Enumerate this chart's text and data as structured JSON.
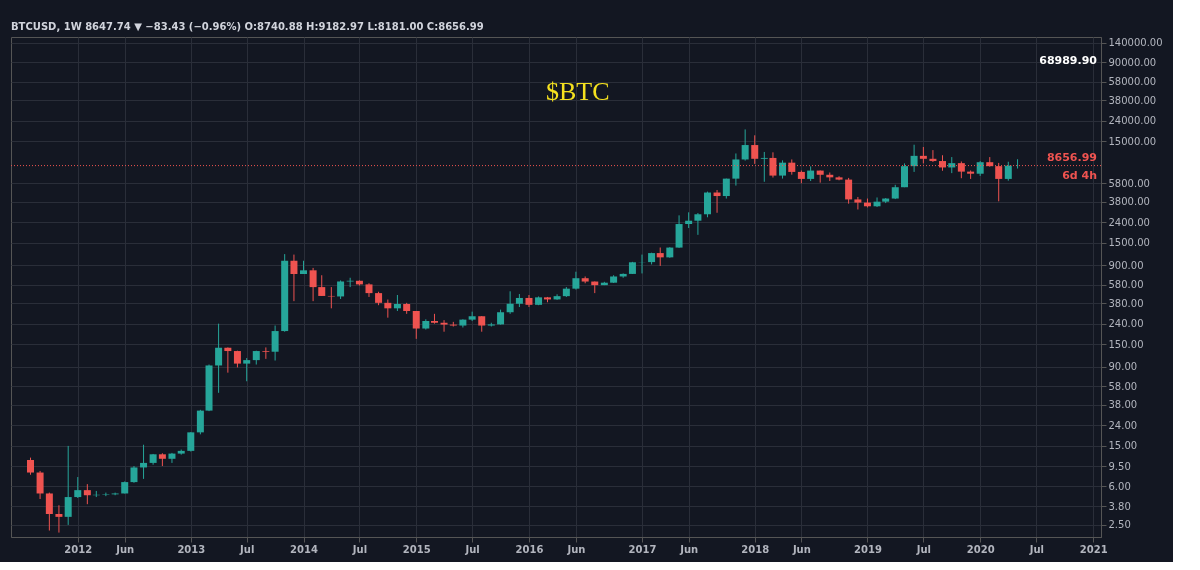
{
  "chart_data": {
    "type": "candlestick",
    "title": "$BTC",
    "annotations": [
      "BTCUSD, 1W 8647.74 ▼ −83.43 (−0.96%) O:8740.88 H:9182.97 L:8181.00 C:8656.99",
      "6d 4h",
      "68989.90"
    ],
    "x": [
      "2011-08",
      "2011-09",
      "2011-10",
      "2011-11",
      "2011-12",
      "2012-01",
      "2012-02",
      "2012-03",
      "2012-04",
      "2012-05",
      "2012-06",
      "2012-07",
      "2012-08",
      "2012-09",
      "2012-10",
      "2012-11",
      "2012-12",
      "2013-01",
      "2013-02",
      "2013-03",
      "2013-04",
      "2013-05",
      "2013-06",
      "2013-07",
      "2013-08",
      "2013-09",
      "2013-10",
      "2013-11",
      "2013-12",
      "2014-01",
      "2014-02",
      "2014-03",
      "2014-04",
      "2014-05",
      "2014-06",
      "2014-07",
      "2014-08",
      "2014-09",
      "2014-10",
      "2014-11",
      "2014-12",
      "2015-01",
      "2015-02",
      "2015-03",
      "2015-04",
      "2015-05",
      "2015-06",
      "2015-07",
      "2015-08",
      "2015-09",
      "2015-10",
      "2015-11",
      "2015-12",
      "2016-01",
      "2016-02",
      "2016-03",
      "2016-04",
      "2016-05",
      "2016-06",
      "2016-07",
      "2016-08",
      "2016-09",
      "2016-10",
      "2016-11",
      "2016-12",
      "2017-01",
      "2017-02",
      "2017-03",
      "2017-04",
      "2017-05",
      "2017-06",
      "2017-07",
      "2017-08",
      "2017-09",
      "2017-10",
      "2017-11",
      "2017-12",
      "2018-01",
      "2018-02",
      "2018-03",
      "2018-04",
      "2018-05",
      "2018-06",
      "2018-07",
      "2018-08",
      "2018-09",
      "2018-10",
      "2018-11",
      "2018-12",
      "2019-01",
      "2019-02",
      "2019-03",
      "2019-04",
      "2019-05",
      "2019-06",
      "2019-07",
      "2019-08",
      "2019-09",
      "2019-10",
      "2019-11",
      "2019-12",
      "2020-01",
      "2020-02",
      "2020-03",
      "2020-04",
      "2020-05"
    ],
    "ohlc": [
      [
        10.9,
        11.5,
        7.8,
        8.2
      ],
      [
        8.2,
        8.5,
        4.5,
        5.1
      ],
      [
        5.1,
        5.2,
        2.2,
        3.2
      ],
      [
        3.2,
        3.9,
        2.1,
        3.0
      ],
      [
        3.0,
        15.0,
        2.5,
        4.7
      ],
      [
        4.7,
        7.4,
        4.6,
        5.5
      ],
      [
        5.5,
        6.3,
        4.0,
        4.9
      ],
      [
        4.9,
        5.4,
        4.7,
        4.95
      ],
      [
        4.95,
        5.2,
        4.8,
        5.0
      ],
      [
        5.0,
        5.2,
        4.9,
        5.1
      ],
      [
        5.1,
        6.7,
        5.1,
        6.6
      ],
      [
        6.6,
        9.5,
        6.5,
        9.2
      ],
      [
        9.2,
        15.4,
        7.1,
        10.2
      ],
      [
        10.2,
        12.5,
        9.8,
        12.4
      ],
      [
        12.4,
        12.7,
        9.5,
        11.2
      ],
      [
        11.2,
        12.8,
        10.2,
        12.6
      ],
      [
        12.6,
        13.8,
        12.3,
        13.4
      ],
      [
        13.4,
        20.5,
        13.2,
        20.4
      ],
      [
        20.4,
        34,
        19.5,
        33.4
      ],
      [
        33.4,
        95,
        33,
        93
      ],
      [
        93,
        240,
        50,
        139
      ],
      [
        139,
        140,
        79,
        129
      ],
      [
        129,
        130,
        89,
        97
      ],
      [
        97,
        110,
        65,
        105
      ],
      [
        105,
        130,
        95,
        129
      ],
      [
        129,
        140,
        108,
        127
      ],
      [
        127,
        230,
        104,
        203
      ],
      [
        203,
        1163,
        200,
        1000
      ],
      [
        1000,
        1150,
        400,
        740
      ],
      [
        740,
        1000,
        740,
        805
      ],
      [
        805,
        850,
        400,
        550
      ],
      [
        550,
        720,
        450,
        450
      ],
      [
        450,
        550,
        340,
        445
      ],
      [
        445,
        640,
        420,
        625
      ],
      [
        625,
        680,
        550,
        635
      ],
      [
        635,
        640,
        570,
        585
      ],
      [
        585,
        600,
        440,
        480
      ],
      [
        480,
        495,
        365,
        385
      ],
      [
        385,
        415,
        275,
        340
      ],
      [
        340,
        460,
        320,
        375
      ],
      [
        375,
        385,
        300,
        320
      ],
      [
        320,
        320,
        170,
        215
      ],
      [
        215,
        265,
        210,
        255
      ],
      [
        255,
        300,
        240,
        245
      ],
      [
        245,
        260,
        200,
        235
      ],
      [
        235,
        250,
        225,
        230
      ],
      [
        230,
        265,
        220,
        263
      ],
      [
        263,
        315,
        255,
        284
      ],
      [
        284,
        285,
        200,
        230
      ],
      [
        230,
        245,
        225,
        236
      ],
      [
        236,
        330,
        235,
        311
      ],
      [
        311,
        500,
        300,
        377
      ],
      [
        377,
        470,
        350,
        430
      ],
      [
        430,
        460,
        350,
        368
      ],
      [
        368,
        445,
        365,
        436
      ],
      [
        436,
        440,
        390,
        416
      ],
      [
        416,
        467,
        412,
        448
      ],
      [
        448,
        550,
        440,
        531
      ],
      [
        531,
        780,
        520,
        673
      ],
      [
        673,
        700,
        600,
        624
      ],
      [
        624,
        625,
        480,
        575
      ],
      [
        575,
        620,
        575,
        608
      ],
      [
        608,
        720,
        605,
        700
      ],
      [
        700,
        750,
        680,
        742
      ],
      [
        742,
        975,
        740,
        966
      ],
      [
        966,
        1150,
        750,
        970
      ],
      [
        970,
        1200,
        920,
        1190
      ],
      [
        1190,
        1350,
        890,
        1080
      ],
      [
        1080,
        1360,
        1070,
        1348
      ],
      [
        1348,
        2800,
        1340,
        2300
      ],
      [
        2300,
        3000,
        2100,
        2480
      ],
      [
        2480,
        2950,
        1800,
        2870
      ],
      [
        2870,
        4800,
        2680,
        4700
      ],
      [
        4700,
        4980,
        2970,
        4340
      ],
      [
        4340,
        6450,
        4100,
        6440
      ],
      [
        6440,
        11400,
        5500,
        9950
      ],
      [
        9950,
        19666,
        9700,
        13800
      ],
      [
        13800,
        17200,
        9000,
        10100
      ],
      [
        10100,
        11800,
        6000,
        10300
      ],
      [
        10300,
        11700,
        6600,
        6900
      ],
      [
        6900,
        9750,
        6450,
        9250
      ],
      [
        9250,
        9950,
        7050,
        7500
      ],
      [
        7500,
        7750,
        5800,
        6400
      ],
      [
        6400,
        8500,
        6100,
        7730
      ],
      [
        7730,
        7760,
        5880,
        7030
      ],
      [
        7030,
        7400,
        6100,
        6630
      ],
      [
        6630,
        6800,
        6200,
        6300
      ],
      [
        6300,
        6550,
        3650,
        4020
      ],
      [
        4020,
        4250,
        3200,
        3740
      ],
      [
        3740,
        4100,
        3350,
        3440
      ],
      [
        3440,
        4200,
        3380,
        3820
      ],
      [
        3820,
        4140,
        3700,
        4100
      ],
      [
        4100,
        5600,
        4050,
        5300
      ],
      [
        5300,
        9100,
        5300,
        8550
      ],
      [
        8550,
        13900,
        7500,
        10800
      ],
      [
        10800,
        13200,
        9100,
        10100
      ],
      [
        10100,
        12300,
        9400,
        9600
      ],
      [
        9600,
        10950,
        7700,
        8300
      ],
      [
        8300,
        10500,
        7300,
        9150
      ],
      [
        9150,
        9500,
        6500,
        7550
      ],
      [
        7550,
        7750,
        6400,
        7200
      ],
      [
        7200,
        9600,
        6850,
        9350
      ],
      [
        9350,
        10500,
        8450,
        8550
      ],
      [
        8550,
        9200,
        3850,
        6400
      ],
      [
        6400,
        9450,
        6150,
        8650
      ],
      [
        8650,
        10000,
        8100,
        8656.99
      ]
    ],
    "colors": [
      "#ef5350",
      "#ef5350",
      "#ef5350",
      "#ef5350",
      "#26a69a",
      "#26a69a",
      "#ef5350",
      "#26a69a",
      "#26a69a",
      "#26a69a",
      "#26a69a",
      "#26a69a",
      "#26a69a",
      "#26a69a",
      "#ef5350",
      "#26a69a",
      "#26a69a",
      "#26a69a",
      "#26a69a",
      "#26a69a",
      "#26a69a",
      "#ef5350",
      "#ef5350",
      "#26a69a",
      "#26a69a",
      "#ef5350",
      "#26a69a",
      "#26a69a",
      "#ef5350",
      "#26a69a",
      "#ef5350",
      "#ef5350",
      "#ef5350",
      "#26a69a",
      "#26a69a",
      "#ef5350",
      "#ef5350",
      "#ef5350",
      "#ef5350",
      "#26a69a",
      "#ef5350",
      "#ef5350",
      "#26a69a",
      "#ef5350",
      "#ef5350",
      "#ef5350",
      "#26a69a",
      "#26a69a",
      "#ef5350",
      "#26a69a",
      "#26a69a",
      "#26a69a",
      "#26a69a",
      "#ef5350",
      "#26a69a",
      "#ef5350",
      "#26a69a",
      "#26a69a",
      "#26a69a",
      "#ef5350",
      "#ef5350",
      "#26a69a",
      "#26a69a",
      "#26a69a",
      "#26a69a",
      "#26a69a",
      "#26a69a",
      "#ef5350",
      "#26a69a",
      "#26a69a",
      "#26a69a",
      "#26a69a",
      "#26a69a",
      "#ef5350",
      "#26a69a",
      "#26a69a",
      "#26a69a",
      "#ef5350",
      "#26a69a",
      "#ef5350",
      "#26a69a",
      "#ef5350",
      "#ef5350",
      "#26a69a",
      "#ef5350",
      "#ef5350",
      "#ef5350",
      "#ef5350",
      "#ef5350",
      "#ef5350",
      "#26a69a",
      "#26a69a",
      "#26a69a",
      "#26a69a",
      "#26a69a",
      "#ef5350",
      "#ef5350",
      "#ef5350",
      "#26a69a",
      "#ef5350",
      "#ef5350",
      "#26a69a",
      "#ef5350",
      "#ef5350",
      "#26a69a",
      "#26a69a"
    ],
    "xlim": [
      "2011-06-15",
      "2021-01-10"
    ],
    "xticks": [
      {
        "value": "2012-01-01",
        "label": "2012"
      },
      {
        "value": "2012-06-01",
        "label": "Jun"
      },
      {
        "value": "2013-01-01",
        "label": "2013"
      },
      {
        "value": "2013-07-01",
        "label": "Jul"
      },
      {
        "value": "2014-01-01",
        "label": "2014"
      },
      {
        "value": "2014-07-01",
        "label": "Jul"
      },
      {
        "value": "2015-01-01",
        "label": "2015"
      },
      {
        "value": "2015-07-01",
        "label": "Jul"
      },
      {
        "value": "2016-01-01",
        "label": "2016"
      },
      {
        "value": "2016-06-01",
        "label": "Jun"
      },
      {
        "value": "2017-01-01",
        "label": "2017"
      },
      {
        "value": "2017-06-01",
        "label": "Jun"
      },
      {
        "value": "2018-01-01",
        "label": "2018"
      },
      {
        "value": "2018-06-01",
        "label": "Jun"
      },
      {
        "value": "2019-01-01",
        "label": "2019"
      },
      {
        "value": "2019-07-01",
        "label": "Jul"
      },
      {
        "value": "2020-01-01",
        "label": "2020"
      },
      {
        "value": "2020-07-01",
        "label": "Jul"
      },
      {
        "value": "2021-01-01",
        "label": "2021"
      }
    ],
    "log": true,
    "ylim": [
      1.9,
      160000
    ],
    "yticks": [
      {
        "value": 2.5,
        "label": "2.50"
      },
      {
        "value": 3.8,
        "label": "3.80"
      },
      {
        "value": 6,
        "label": "6.00"
      },
      {
        "value": 9.5,
        "label": "9.50"
      },
      {
        "value": 15,
        "label": "15.00"
      },
      {
        "value": 24,
        "label": "24.00"
      },
      {
        "value": 38,
        "label": "38.00"
      },
      {
        "value": 58,
        "label": "58.00"
      },
      {
        "value": 90,
        "label": "90.00"
      },
      {
        "value": 150,
        "label": "150.00"
      },
      {
        "value": 240,
        "label": "240.00"
      },
      {
        "value": 380,
        "label": "380.00"
      },
      {
        "value": 580,
        "label": "580.00"
      },
      {
        "value": 900,
        "label": "900.00"
      },
      {
        "value": 1500,
        "label": "1500.00"
      },
      {
        "value": 2400,
        "label": "2400.00"
      },
      {
        "value": 3800,
        "label": "3800.00"
      },
      {
        "value": 5800,
        "label": "5800.00"
      },
      {
        "value": 15000,
        "label": "15000.00"
      },
      {
        "value": 24000,
        "label": "24000.00"
      },
      {
        "value": 38000,
        "label": "38000.00"
      },
      {
        "value": 58000,
        "label": "58000.00"
      },
      {
        "value": 90000,
        "label": "90000.00"
      },
      {
        "value": 140000,
        "label": "140000.00"
      }
    ],
    "ref_lines": [
      {
        "axis": "y",
        "value": 8656.99,
        "label": "8656.99",
        "color": "#ef5350",
        "line_style": "dotted"
      }
    ],
    "grid": true
  }
}
